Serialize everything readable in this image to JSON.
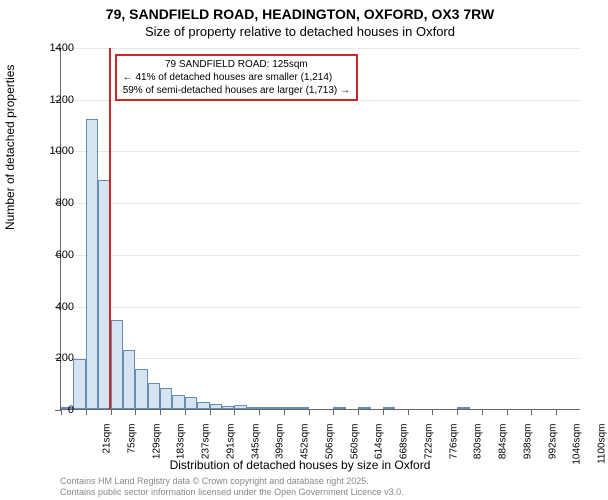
{
  "chart": {
    "type": "histogram",
    "title_main": "79, SANDFIELD ROAD, HEADINGTON, OXFORD, OX3 7RW",
    "title_sub": "Size of property relative to detached houses in Oxford",
    "title_fontsize_main": 14,
    "title_fontsize_sub": 13,
    "y_axis_title": "Number of detached properties",
    "x_axis_title": "Distribution of detached houses by size in Oxford",
    "axis_title_fontsize": 12,
    "background_color": "#ffffff",
    "grid_color": "#e8e8e8",
    "axis_color": "#666666",
    "bar_fill": "#d6e3f3",
    "bar_border": "#668db3",
    "ylim": [
      0,
      1400
    ],
    "ytick_step": 200,
    "yticks": [
      0,
      200,
      400,
      600,
      800,
      1000,
      1200,
      1400
    ],
    "x_categories": [
      "21sqm",
      "75sqm",
      "129sqm",
      "183sqm",
      "237sqm",
      "291sqm",
      "345sqm",
      "399sqm",
      "452sqm",
      "506sqm",
      "560sqm",
      "614sqm",
      "668sqm",
      "722sqm",
      "776sqm",
      "830sqm",
      "884sqm",
      "938sqm",
      "992sqm",
      "1046sqm",
      "1100sqm"
    ],
    "bars_per_category": 2,
    "values": [
      5,
      195,
      1120,
      885,
      345,
      230,
      155,
      100,
      80,
      55,
      45,
      28,
      18,
      12,
      14,
      6,
      8,
      4,
      3,
      2,
      0,
      0,
      2,
      0,
      2,
      0,
      1,
      0,
      0,
      0,
      0,
      0,
      1,
      0,
      0,
      0,
      0,
      0,
      0,
      0,
      0,
      0
    ],
    "marker": {
      "value_sqm": 125,
      "color": "#c82828",
      "line_width": 2
    },
    "annotation": {
      "lines": [
        "79 SANDFIELD ROAD: 125sqm",
        "← 41% of detached houses are smaller (1,214)",
        "59% of semi-detached houses are larger (1,713) →"
      ],
      "border_color": "#c82828",
      "background": "#ffffff",
      "fontsize": 10
    },
    "footer": {
      "line1": "Contains HM Land Registry data © Crown copyright and database right 2025.",
      "line2": "Contains public sector information licensed under the Open Government Licence v3.0.",
      "color": "#888888",
      "fontsize": 9
    },
    "tick_label_fontsize": 11,
    "x_tick_label_fontsize": 10
  }
}
